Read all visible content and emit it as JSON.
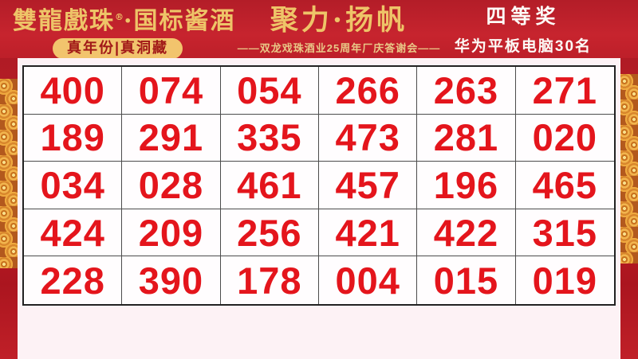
{
  "header": {
    "brand": {
      "name": "雙龍戲珠",
      "registered_mark": "®",
      "separator": "·",
      "product": "国标酱酒",
      "tagline": "真年份|真洞藏"
    },
    "event": {
      "title": "聚力·扬帆",
      "subtitle": "——双龙戏珠酒业25周年厂庆答谢会——"
    },
    "prize": {
      "tier": "四等奖",
      "description": "华为平板电脑30名"
    }
  },
  "grid": {
    "rows": [
      [
        "400",
        "074",
        "054",
        "266",
        "263",
        "271"
      ],
      [
        "189",
        "291",
        "335",
        "473",
        "281",
        "020"
      ],
      [
        "034",
        "028",
        "461",
        "457",
        "196",
        "465"
      ],
      [
        "424",
        "209",
        "256",
        "421",
        "422",
        "315"
      ],
      [
        "228",
        "390",
        "178",
        "004",
        "015",
        "019"
      ]
    ]
  },
  "colors": {
    "banner_red": "#c0222c",
    "side_border_red": "#b01b25",
    "cloud_gold": "#f2b54e",
    "gold_text": "#eec468",
    "pill_gold": "#f2c46d",
    "pill_text_red": "#a11818",
    "number_red": "#e4151c",
    "panel_pink": "#fdf2f5",
    "grid_line": "#4c4c4c"
  }
}
